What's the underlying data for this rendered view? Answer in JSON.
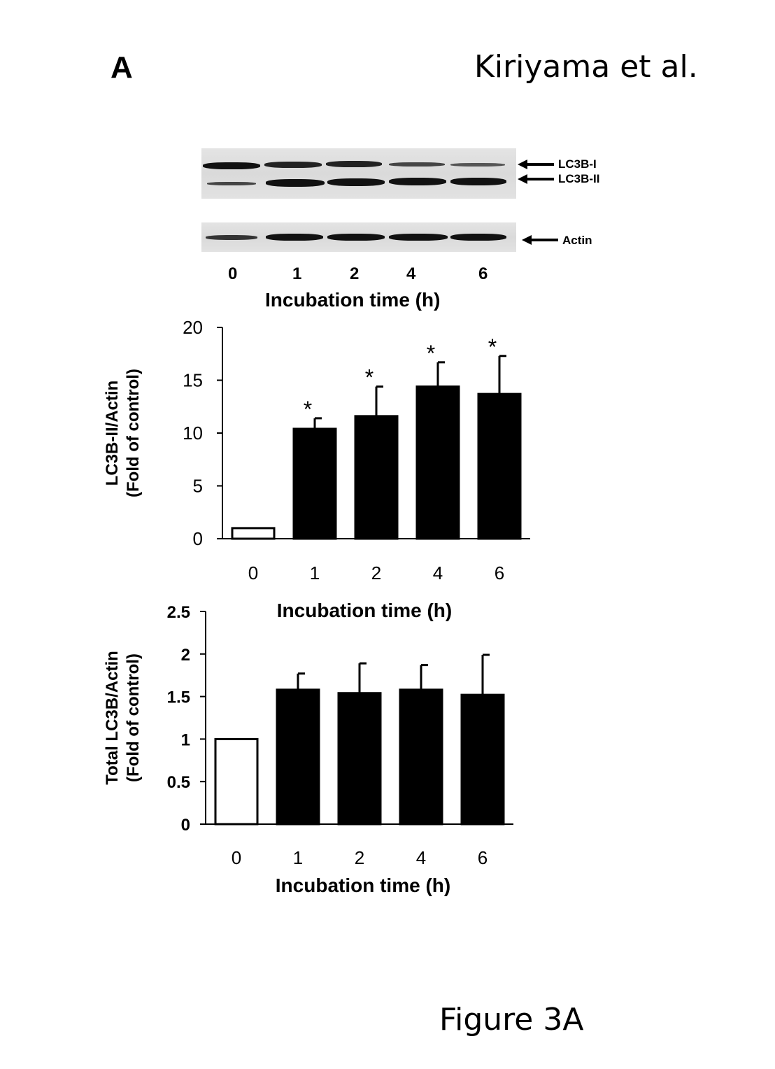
{
  "header": {
    "panel_letter": "A",
    "authors": "Kiriyama et al."
  },
  "footer": {
    "figure_label": "Figure 3A"
  },
  "blot": {
    "labels": {
      "lc3b_1": "LC3B-I",
      "lc3b_2": "LC3B-II",
      "actin": "Actin"
    },
    "lanes": [
      "0",
      "1",
      "2",
      "4",
      "6"
    ],
    "xlabel": "Incubation time (h)"
  },
  "chart_data": [
    {
      "type": "bar",
      "categories": [
        "0",
        "1",
        "2",
        "4",
        "6"
      ],
      "values": [
        1.0,
        10.4,
        11.6,
        14.4,
        13.7
      ],
      "errors": [
        0,
        1.0,
        2.8,
        2.3,
        3.6
      ],
      "significant": [
        false,
        true,
        true,
        true,
        true
      ],
      "significance_marker": "*",
      "bar_colors": [
        "#ffffff",
        "#000000",
        "#000000",
        "#000000",
        "#000000"
      ],
      "ylim": [
        0,
        20
      ],
      "yticks": [
        "0",
        "5",
        "10",
        "15",
        "20"
      ],
      "ylabel_line1": "LC3B-II/Actin",
      "ylabel_line2": "(Fold of control)",
      "xlabel": "Incubation time (h)",
      "grid": false
    },
    {
      "type": "bar",
      "categories": [
        "0",
        "1",
        "2",
        "4",
        "6"
      ],
      "values": [
        1.0,
        1.58,
        1.54,
        1.58,
        1.52
      ],
      "errors": [
        0,
        0.19,
        0.35,
        0.29,
        0.47
      ],
      "significant": [
        false,
        false,
        false,
        false,
        false
      ],
      "significance_marker": "",
      "bar_colors": [
        "#ffffff",
        "#000000",
        "#000000",
        "#000000",
        "#000000"
      ],
      "ylim": [
        0,
        2.5
      ],
      "yticks": [
        "0",
        "0.5",
        "1",
        "1.5",
        "2",
        "2.5"
      ],
      "ylabel_line1": "Total LC3B/Actin",
      "ylabel_line2": "(Fold of control)",
      "xlabel": "Incubation time (h)",
      "grid": false
    }
  ]
}
